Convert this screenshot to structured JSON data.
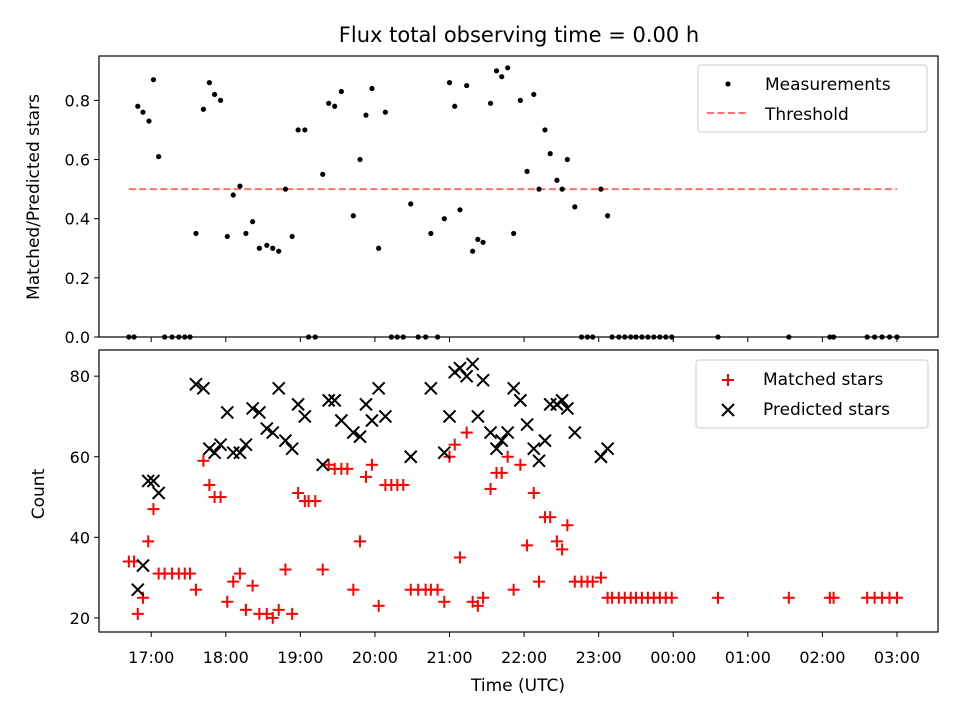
{
  "chart_data": [
    {
      "type": "scatter",
      "title": "Flux total observing time = 0.00 h",
      "xlabel": "",
      "ylabel": "Matched/Predicted stars",
      "xlim": [
        16.3,
        27.55
      ],
      "ylim": [
        0,
        0.95
      ],
      "yticks": [
        0.0,
        0.2,
        0.4,
        0.6,
        0.8
      ],
      "ytick_labels": [
        "0.0",
        "0.2",
        "0.4",
        "0.6",
        "0.8"
      ],
      "legend_position": "upper right",
      "series": [
        {
          "name": "Measurements",
          "marker": "dot",
          "color": "#000000",
          "points": [
            [
              16.7,
              0
            ],
            [
              16.77,
              0
            ],
            [
              16.82,
              0.78
            ],
            [
              16.89,
              0.76
            ],
            [
              16.97,
              0.73
            ],
            [
              17.03,
              0.87
            ],
            [
              17.1,
              0.61
            ],
            [
              17.18,
              0
            ],
            [
              17.28,
              0
            ],
            [
              17.37,
              0
            ],
            [
              17.45,
              0
            ],
            [
              17.52,
              0
            ],
            [
              17.6,
              0.35
            ],
            [
              17.7,
              0.77
            ],
            [
              17.78,
              0.86
            ],
            [
              17.85,
              0.82
            ],
            [
              17.93,
              0.8
            ],
            [
              18.02,
              0.34
            ],
            [
              18.1,
              0.48
            ],
            [
              18.19,
              0.51
            ],
            [
              18.27,
              0.35
            ],
            [
              18.36,
              0.39
            ],
            [
              18.45,
              0.3
            ],
            [
              18.55,
              0.31
            ],
            [
              18.63,
              0.3
            ],
            [
              18.71,
              0.29
            ],
            [
              18.8,
              0.5
            ],
            [
              18.89,
              0.34
            ],
            [
              18.97,
              0.7
            ],
            [
              19.06,
              0.7
            ],
            [
              19.11,
              0
            ],
            [
              19.2,
              0
            ],
            [
              19.3,
              0.55
            ],
            [
              19.38,
              0.79
            ],
            [
              19.46,
              0.78
            ],
            [
              19.55,
              0.83
            ],
            [
              19.71,
              0.41
            ],
            [
              19.8,
              0.6
            ],
            [
              19.88,
              0.75
            ],
            [
              19.96,
              0.84
            ],
            [
              20.05,
              0.3
            ],
            [
              20.14,
              0.76
            ],
            [
              20.22,
              0
            ],
            [
              20.3,
              0
            ],
            [
              20.38,
              0
            ],
            [
              20.48,
              0.45
            ],
            [
              20.58,
              0
            ],
            [
              20.68,
              0
            ],
            [
              20.75,
              0.35
            ],
            [
              20.84,
              0
            ],
            [
              20.93,
              0.4
            ],
            [
              21.0,
              0.86
            ],
            [
              21.07,
              0.78
            ],
            [
              21.14,
              0.43
            ],
            [
              21.23,
              0.85
            ],
            [
              21.31,
              0.29
            ],
            [
              21.38,
              0.33
            ],
            [
              21.45,
              0.32
            ],
            [
              21.55,
              0.79
            ],
            [
              21.63,
              0.9
            ],
            [
              21.7,
              0.88
            ],
            [
              21.78,
              0.91
            ],
            [
              21.86,
              0.35
            ],
            [
              21.95,
              0.8
            ],
            [
              22.04,
              0.56
            ],
            [
              22.13,
              0.82
            ],
            [
              22.2,
              0.5
            ],
            [
              22.28,
              0.7
            ],
            [
              22.35,
              0.62
            ],
            [
              22.44,
              0.53
            ],
            [
              22.51,
              0.5
            ],
            [
              22.58,
              0.6
            ],
            [
              22.68,
              0.44
            ],
            [
              22.77,
              0
            ],
            [
              22.85,
              0
            ],
            [
              22.92,
              0
            ],
            [
              23.03,
              0.5
            ],
            [
              23.12,
              0.41
            ],
            [
              23.18,
              0
            ],
            [
              23.27,
              0
            ],
            [
              23.35,
              0
            ],
            [
              23.43,
              0
            ],
            [
              23.5,
              0
            ],
            [
              23.58,
              0
            ],
            [
              23.66,
              0
            ],
            [
              23.74,
              0
            ],
            [
              23.82,
              0
            ],
            [
              23.9,
              0
            ],
            [
              23.98,
              0
            ],
            [
              24.6,
              0
            ],
            [
              25.55,
              0
            ],
            [
              26.1,
              0
            ],
            [
              26.15,
              0
            ],
            [
              26.6,
              0
            ],
            [
              26.7,
              0
            ],
            [
              26.8,
              0
            ],
            [
              26.9,
              0
            ],
            [
              27.0,
              0
            ]
          ]
        },
        {
          "name": "Threshold",
          "marker": "dashed-line",
          "color": "#ff6f6f",
          "points": [
            [
              16.7,
              0.5
            ],
            [
              27.0,
              0.5
            ]
          ]
        }
      ]
    },
    {
      "type": "scatter",
      "title": "",
      "xlabel": "Time (UTC)",
      "ylabel": "Count",
      "xlim": [
        16.3,
        27.55
      ],
      "ylim": [
        16.5,
        86.5
      ],
      "yticks": [
        20,
        40,
        60,
        80
      ],
      "ytick_labels": [
        "20",
        "40",
        "60",
        "80"
      ],
      "xticks": [
        17,
        18,
        19,
        20,
        21,
        22,
        23,
        24,
        25,
        26,
        27
      ],
      "xtick_labels": [
        "17:00",
        "18:00",
        "19:00",
        "20:00",
        "21:00",
        "22:00",
        "23:00",
        "00:00",
        "01:00",
        "02:00",
        "03:00"
      ],
      "legend_position": "upper right",
      "series": [
        {
          "name": "Matched stars",
          "marker": "plus",
          "color": "#ff0000",
          "points": [
            [
              16.7,
              34
            ],
            [
              16.77,
              34
            ],
            [
              16.82,
              21
            ],
            [
              16.89,
              25
            ],
            [
              16.96,
              39
            ],
            [
              17.03,
              47
            ],
            [
              17.1,
              31
            ],
            [
              17.18,
              31
            ],
            [
              17.28,
              31
            ],
            [
              17.37,
              31
            ],
            [
              17.45,
              31
            ],
            [
              17.52,
              31
            ],
            [
              17.6,
              27
            ],
            [
              17.7,
              59
            ],
            [
              17.78,
              53
            ],
            [
              17.85,
              50
            ],
            [
              17.93,
              50
            ],
            [
              18.02,
              24
            ],
            [
              18.1,
              29
            ],
            [
              18.19,
              31
            ],
            [
              18.27,
              22
            ],
            [
              18.36,
              28
            ],
            [
              18.45,
              21
            ],
            [
              18.55,
              21
            ],
            [
              18.63,
              20
            ],
            [
              18.71,
              22
            ],
            [
              18.8,
              32
            ],
            [
              18.89,
              21
            ],
            [
              18.97,
              51
            ],
            [
              19.06,
              49
            ],
            [
              19.11,
              49
            ],
            [
              19.2,
              49
            ],
            [
              19.3,
              32
            ],
            [
              19.38,
              58
            ],
            [
              19.46,
              57
            ],
            [
              19.55,
              57
            ],
            [
              19.63,
              57
            ],
            [
              19.71,
              27
            ],
            [
              19.8,
              39
            ],
            [
              19.88,
              55
            ],
            [
              19.96,
              58
            ],
            [
              20.05,
              23
            ],
            [
              20.14,
              53
            ],
            [
              20.22,
              53
            ],
            [
              20.3,
              53
            ],
            [
              20.38,
              53
            ],
            [
              20.48,
              27
            ],
            [
              20.58,
              27
            ],
            [
              20.68,
              27
            ],
            [
              20.75,
              27
            ],
            [
              20.84,
              27
            ],
            [
              20.93,
              24
            ],
            [
              21.0,
              60
            ],
            [
              21.07,
              63
            ],
            [
              21.14,
              35
            ],
            [
              21.23,
              66
            ],
            [
              21.31,
              24
            ],
            [
              21.38,
              23
            ],
            [
              21.45,
              25
            ],
            [
              21.55,
              52
            ],
            [
              21.63,
              56
            ],
            [
              21.7,
              56
            ],
            [
              21.78,
              60
            ],
            [
              21.86,
              27
            ],
            [
              21.95,
              58
            ],
            [
              22.04,
              38
            ],
            [
              22.13,
              51
            ],
            [
              22.2,
              29
            ],
            [
              22.28,
              45
            ],
            [
              22.35,
              45
            ],
            [
              22.44,
              39
            ],
            [
              22.51,
              37
            ],
            [
              22.58,
              43
            ],
            [
              22.68,
              29
            ],
            [
              22.77,
              29
            ],
            [
              22.85,
              29
            ],
            [
              22.92,
              29
            ],
            [
              23.03,
              30
            ],
            [
              23.12,
              25
            ],
            [
              23.18,
              25
            ],
            [
              23.27,
              25
            ],
            [
              23.35,
              25
            ],
            [
              23.43,
              25
            ],
            [
              23.5,
              25
            ],
            [
              23.58,
              25
            ],
            [
              23.66,
              25
            ],
            [
              23.74,
              25
            ],
            [
              23.82,
              25
            ],
            [
              23.9,
              25
            ],
            [
              23.98,
              25
            ],
            [
              24.6,
              25
            ],
            [
              25.55,
              25
            ],
            [
              26.1,
              25
            ],
            [
              26.15,
              25
            ],
            [
              26.6,
              25
            ],
            [
              26.7,
              25
            ],
            [
              26.8,
              25
            ],
            [
              26.9,
              25
            ],
            [
              27.0,
              25
            ]
          ]
        },
        {
          "name": "Predicted stars",
          "marker": "x",
          "color": "#000000",
          "points": [
            [
              16.82,
              27
            ],
            [
              16.89,
              33
            ],
            [
              16.96,
              54
            ],
            [
              17.03,
              54
            ],
            [
              17.1,
              51
            ],
            [
              17.6,
              78
            ],
            [
              17.7,
              77
            ],
            [
              17.78,
              62
            ],
            [
              17.85,
              61
            ],
            [
              17.93,
              63
            ],
            [
              18.02,
              71
            ],
            [
              18.1,
              61
            ],
            [
              18.19,
              61
            ],
            [
              18.27,
              63
            ],
            [
              18.36,
              72
            ],
            [
              18.45,
              71
            ],
            [
              18.55,
              67
            ],
            [
              18.63,
              66
            ],
            [
              18.71,
              77
            ],
            [
              18.8,
              64
            ],
            [
              18.89,
              62
            ],
            [
              18.97,
              73
            ],
            [
              19.06,
              70
            ],
            [
              19.3,
              58
            ],
            [
              19.38,
              74
            ],
            [
              19.46,
              74
            ],
            [
              19.55,
              69
            ],
            [
              19.71,
              66
            ],
            [
              19.8,
              65
            ],
            [
              19.88,
              73
            ],
            [
              19.96,
              69
            ],
            [
              20.05,
              77
            ],
            [
              20.14,
              70
            ],
            [
              20.48,
              60
            ],
            [
              20.75,
              77
            ],
            [
              20.93,
              61
            ],
            [
              21.0,
              70
            ],
            [
              21.07,
              81
            ],
            [
              21.14,
              82
            ],
            [
              21.23,
              80
            ],
            [
              21.31,
              83
            ],
            [
              21.38,
              70
            ],
            [
              21.45,
              79
            ],
            [
              21.55,
              66
            ],
            [
              21.63,
              62
            ],
            [
              21.7,
              64
            ],
            [
              21.78,
              66
            ],
            [
              21.86,
              77
            ],
            [
              21.95,
              74
            ],
            [
              22.04,
              68
            ],
            [
              22.13,
              62
            ],
            [
              22.2,
              59
            ],
            [
              22.28,
              64
            ],
            [
              22.35,
              73
            ],
            [
              22.44,
              73
            ],
            [
              22.51,
              74
            ],
            [
              22.58,
              72
            ],
            [
              22.68,
              66
            ],
            [
              23.03,
              60
            ],
            [
              23.12,
              62
            ]
          ]
        }
      ]
    }
  ]
}
